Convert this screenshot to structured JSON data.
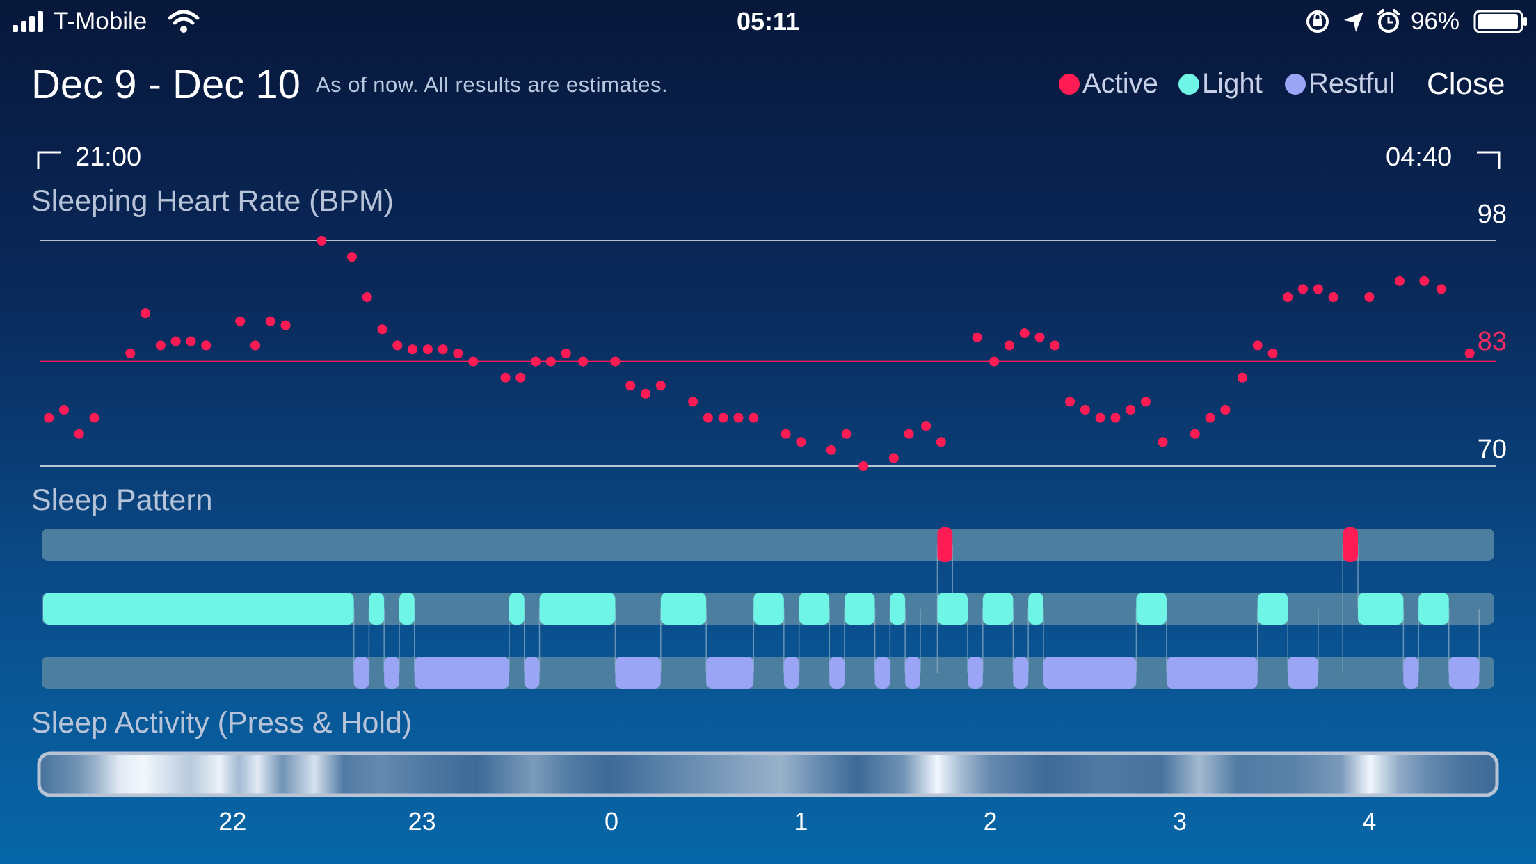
{
  "status_bar": {
    "carrier": "T-Mobile",
    "time": "05:11",
    "battery": "96%"
  },
  "header": {
    "title": "Dec 9 - Dec 10",
    "subtitle": "As of now. All results are estimates.",
    "legend": [
      {
        "label": "Active",
        "color": "#ff1c55"
      },
      {
        "label": "Light",
        "color": "#6ff5e6"
      },
      {
        "label": "Restful",
        "color": "#9aa6f5"
      }
    ],
    "close_label": "Close"
  },
  "range": {
    "start": "21:00",
    "end": "04:40"
  },
  "heart_rate": {
    "title": "Sleeping Heart Rate (BPM)",
    "max": "98",
    "avg": "83",
    "min": "70",
    "max_value": 98,
    "avg_value": 83,
    "min_value": 70
  },
  "sleep_pattern": {
    "title": "Sleep Pattern"
  },
  "sleep_activity": {
    "title": "Sleep Activity (Press & Hold)"
  },
  "x_axis": [
    "22",
    "23",
    "0",
    "1",
    "2",
    "3",
    "4"
  ],
  "colors": {
    "active": "#ff1c55",
    "light": "#6ff5e6",
    "restful": "#9aa6f5",
    "track": "#4c7f9f"
  },
  "chart_data": {
    "type": "scatter",
    "title": "Sleeping Heart Rate (BPM)",
    "x_unit": "hours after 21:00",
    "x_range": [
      0.0,
      7.667
    ],
    "ylim": [
      70,
      98
    ],
    "reference_lines": [
      98,
      83,
      70
    ],
    "points": [
      [
        0.03,
        76
      ],
      [
        0.11,
        77
      ],
      [
        0.19,
        74
      ],
      [
        0.27,
        76
      ],
      [
        0.46,
        84
      ],
      [
        0.54,
        89
      ],
      [
        0.62,
        85
      ],
      [
        0.7,
        85.5
      ],
      [
        0.78,
        85.5
      ],
      [
        0.86,
        85
      ],
      [
        1.04,
        88
      ],
      [
        1.12,
        85
      ],
      [
        1.2,
        88
      ],
      [
        1.28,
        87.5
      ],
      [
        1.47,
        98
      ],
      [
        1.63,
        96
      ],
      [
        1.71,
        91
      ],
      [
        1.79,
        87
      ],
      [
        1.87,
        85
      ],
      [
        1.95,
        84.5
      ],
      [
        2.03,
        84.5
      ],
      [
        2.11,
        84.5
      ],
      [
        2.19,
        84
      ],
      [
        2.27,
        83
      ],
      [
        2.44,
        81
      ],
      [
        2.52,
        81
      ],
      [
        2.6,
        83
      ],
      [
        2.68,
        83
      ],
      [
        2.76,
        84
      ],
      [
        2.85,
        83
      ],
      [
        3.02,
        83
      ],
      [
        3.1,
        80
      ],
      [
        3.18,
        79
      ],
      [
        3.26,
        80
      ],
      [
        3.43,
        78
      ],
      [
        3.51,
        76
      ],
      [
        3.59,
        76
      ],
      [
        3.67,
        76
      ],
      [
        3.75,
        76
      ],
      [
        3.92,
        74
      ],
      [
        4.0,
        73
      ],
      [
        4.16,
        72
      ],
      [
        4.24,
        74
      ],
      [
        4.33,
        70
      ],
      [
        4.49,
        71
      ],
      [
        4.57,
        74
      ],
      [
        4.66,
        75
      ],
      [
        4.74,
        73
      ],
      [
        4.93,
        86
      ],
      [
        5.02,
        83
      ],
      [
        5.1,
        85
      ],
      [
        5.18,
        86.5
      ],
      [
        5.26,
        86
      ],
      [
        5.34,
        85
      ],
      [
        5.42,
        78
      ],
      [
        5.5,
        77
      ],
      [
        5.58,
        76
      ],
      [
        5.66,
        76
      ],
      [
        5.74,
        77
      ],
      [
        5.82,
        78
      ],
      [
        5.91,
        73
      ],
      [
        6.08,
        74
      ],
      [
        6.16,
        76
      ],
      [
        6.24,
        77
      ],
      [
        6.33,
        81
      ],
      [
        6.41,
        85
      ],
      [
        6.49,
        84
      ],
      [
        6.57,
        91
      ],
      [
        6.65,
        92
      ],
      [
        6.73,
        92
      ],
      [
        6.81,
        91
      ],
      [
        7.0,
        91
      ],
      [
        7.16,
        93
      ],
      [
        7.29,
        93
      ],
      [
        7.38,
        92
      ],
      [
        7.53,
        84
      ]
    ]
  },
  "sleep_stages": {
    "active": [
      [
        4.72,
        4.8
      ],
      [
        6.86,
        6.94
      ]
    ],
    "light": [
      [
        0.0,
        1.64
      ],
      [
        1.72,
        1.8
      ],
      [
        1.88,
        1.96
      ],
      [
        2.46,
        2.54
      ],
      [
        2.62,
        3.02
      ],
      [
        3.26,
        3.5
      ],
      [
        3.75,
        3.91
      ],
      [
        3.99,
        4.15
      ],
      [
        4.23,
        4.39
      ],
      [
        4.47,
        4.55
      ],
      [
        4.72,
        4.88
      ],
      [
        4.96,
        5.12
      ],
      [
        5.2,
        5.28
      ],
      [
        5.77,
        5.93
      ],
      [
        6.41,
        6.57
      ],
      [
        6.94,
        7.18
      ],
      [
        7.26,
        7.42
      ]
    ],
    "restful": [
      [
        1.64,
        1.72
      ],
      [
        1.8,
        1.88
      ],
      [
        1.96,
        2.46
      ],
      [
        2.54,
        2.62
      ],
      [
        3.02,
        3.26
      ],
      [
        3.5,
        3.75
      ],
      [
        3.91,
        3.99
      ],
      [
        4.15,
        4.23
      ],
      [
        4.39,
        4.47
      ],
      [
        4.55,
        4.63
      ],
      [
        4.88,
        4.96
      ],
      [
        5.12,
        5.2
      ],
      [
        5.28,
        5.77
      ],
      [
        5.93,
        6.41
      ],
      [
        6.57,
        6.73
      ],
      [
        7.18,
        7.26
      ],
      [
        7.42,
        7.58
      ]
    ]
  },
  "activity_intensity": [
    [
      0.0,
      0.15
    ],
    [
      0.2,
      0.35
    ],
    [
      0.3,
      0.55
    ],
    [
      0.42,
      0.9
    ],
    [
      0.55,
      0.98
    ],
    [
      0.8,
      0.7
    ],
    [
      0.95,
      0.95
    ],
    [
      1.05,
      0.6
    ],
    [
      1.15,
      0.9
    ],
    [
      1.28,
      0.35
    ],
    [
      1.45,
      0.85
    ],
    [
      1.6,
      0.2
    ],
    [
      1.8,
      0.3
    ],
    [
      2.0,
      0.2
    ],
    [
      2.3,
      0.1
    ],
    [
      2.6,
      0.4
    ],
    [
      2.8,
      0.2
    ],
    [
      3.0,
      0.1
    ],
    [
      3.4,
      0.3
    ],
    [
      3.9,
      0.55
    ],
    [
      4.1,
      0.3
    ],
    [
      4.3,
      0.1
    ],
    [
      4.55,
      0.35
    ],
    [
      4.72,
      0.98
    ],
    [
      4.85,
      0.6
    ],
    [
      5.0,
      0.3
    ],
    [
      5.3,
      0.1
    ],
    [
      5.6,
      0.2
    ],
    [
      5.9,
      0.15
    ],
    [
      6.1,
      0.6
    ],
    [
      6.3,
      0.2
    ],
    [
      6.6,
      0.25
    ],
    [
      6.85,
      0.4
    ],
    [
      7.0,
      0.98
    ],
    [
      7.15,
      0.5
    ],
    [
      7.3,
      0.3
    ],
    [
      7.5,
      0.15
    ],
    [
      7.667,
      0.1
    ]
  ]
}
